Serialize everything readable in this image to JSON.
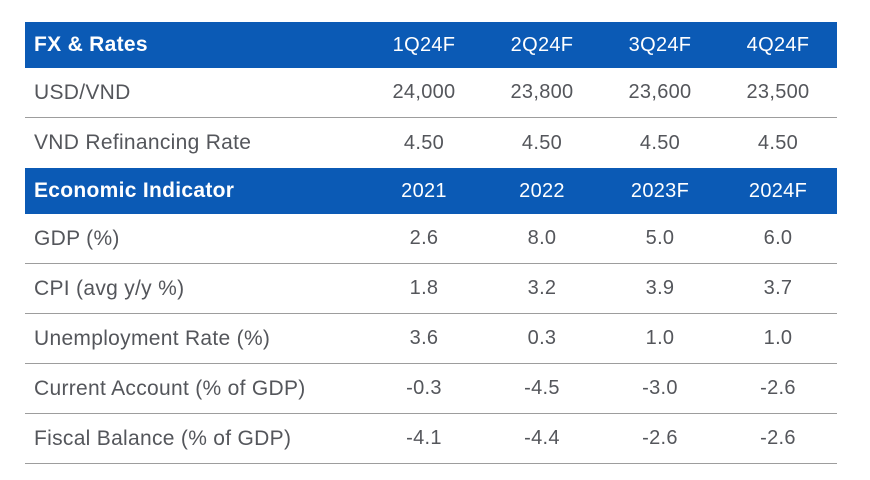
{
  "theme": {
    "header_bg": "#0B5AB5",
    "header_text": "#FFFFFF",
    "body_text": "#54565B",
    "divider": "#9D9D9D",
    "background": "#FFFFFF"
  },
  "fx_table": {
    "header": {
      "label": "FX & Rates",
      "columns": [
        "1Q24F",
        "2Q24F",
        "3Q24F",
        "4Q24F"
      ]
    },
    "rows": [
      {
        "label": "USD/VND",
        "values": [
          "24,000",
          "23,800",
          "23,600",
          "23,500"
        ]
      },
      {
        "label": "VND Refinancing Rate",
        "values": [
          "4.50",
          "4.50",
          "4.50",
          "4.50"
        ]
      }
    ]
  },
  "econ_table": {
    "header": {
      "label": "Economic Indicator",
      "columns": [
        "2021",
        "2022",
        "2023F",
        "2024F"
      ]
    },
    "rows": [
      {
        "label": "GDP (%)",
        "values": [
          "2.6",
          "8.0",
          "5.0",
          "6.0"
        ]
      },
      {
        "label": "CPI (avg y/y %)",
        "values": [
          "1.8",
          "3.2",
          "3.9",
          "3.7"
        ]
      },
      {
        "label": "Unemployment Rate (%)",
        "values": [
          "3.6",
          "0.3",
          "1.0",
          "1.0"
        ]
      },
      {
        "label": "Current Account (% of GDP)",
        "values": [
          "-0.3",
          "-4.5",
          "-3.0",
          "-2.6"
        ]
      },
      {
        "label": "Fiscal Balance (% of GDP)",
        "values": [
          "-4.1",
          "-4.4",
          "-2.6",
          "-2.6"
        ]
      }
    ]
  }
}
